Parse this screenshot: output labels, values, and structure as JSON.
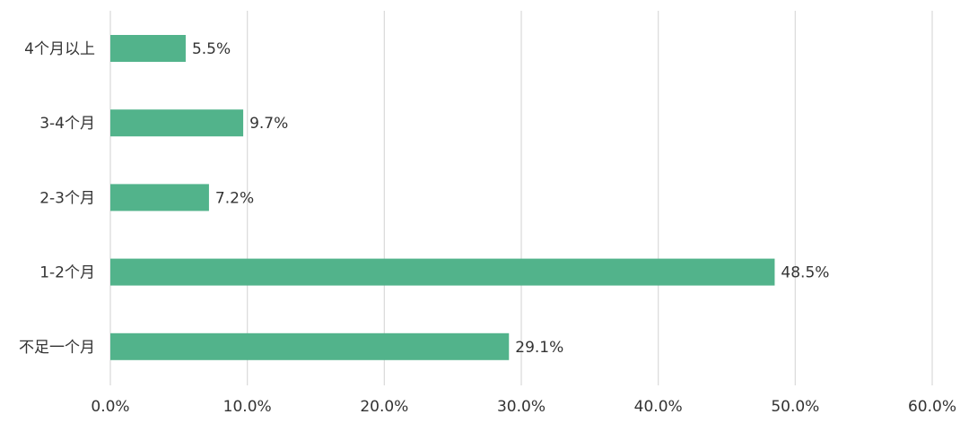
{
  "chart_data": {
    "type": "bar",
    "orientation": "horizontal",
    "categories": [
      "4个月以上",
      "3-4个月",
      "2-3个月",
      "1-2个月",
      "不足一个月"
    ],
    "values": [
      5.5,
      9.7,
      7.2,
      48.5,
      29.1
    ],
    "value_labels": [
      "5.5%",
      "9.7%",
      "7.2%",
      "48.5%",
      "29.1%"
    ],
    "xlim": [
      0,
      60
    ],
    "x_ticks": [
      0,
      10,
      20,
      30,
      40,
      50,
      60
    ],
    "x_tick_labels": [
      "0.0%",
      "10.0%",
      "20.0%",
      "30.0%",
      "40.0%",
      "50.0%",
      "60.0%"
    ],
    "bar_color": "#52b38b",
    "grid": "vertical",
    "legend": "none"
  }
}
